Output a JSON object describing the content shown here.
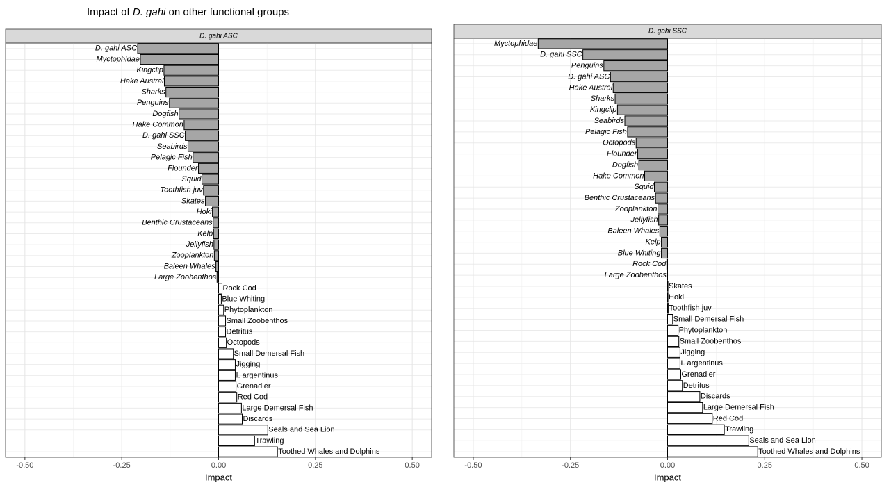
{
  "title": [
    "Impact of ",
    "D. gahi",
    " on other functional groups"
  ],
  "chart_data": [
    {
      "type": "bar",
      "orientation": "horizontal",
      "panel_title": "D. gahi ASC",
      "xlabel": "Impact",
      "categories": [
        "D. gahi ASC",
        "Myctophidae",
        "Kingclip",
        "Hake Austral",
        "Sharks",
        "Penguins",
        "Dogfish",
        "Hake Common",
        "D. gahi SSC",
        "Seabirds",
        "Pelagic Fish",
        "Flounder",
        "Squid",
        "Toothfish juv",
        "Skates",
        "Hoki",
        "Benthic Crustaceans",
        "Kelp",
        "Jellyfish",
        "Zooplankton",
        "Baleen Whales",
        "Large Zoobenthos",
        "Rock Cod",
        "Blue Whiting",
        "Phytoplankton",
        "Small Zoobenthos",
        "Detritus",
        "Octopods",
        "Small Demersal Fish",
        "Jigging",
        "I. argentinus",
        "Grenadier",
        "Red Cod",
        "Large Demersal Fish",
        "Discards",
        "Seals and Sea Lion",
        "Trawling",
        "Toothed Whales and Dolphins"
      ],
      "values": [
        -0.209,
        -0.202,
        -0.141,
        -0.14,
        -0.136,
        -0.127,
        -0.102,
        -0.089,
        -0.086,
        -0.079,
        -0.066,
        -0.052,
        -0.043,
        -0.039,
        -0.034,
        -0.016,
        -0.014,
        -0.013,
        -0.012,
        -0.011,
        -0.007,
        -0.004,
        0.009,
        0.007,
        0.013,
        0.018,
        0.018,
        0.02,
        0.038,
        0.043,
        0.043,
        0.045,
        0.047,
        0.059,
        0.061,
        0.127,
        0.093,
        0.152
      ],
      "negative_color": "#a6a6a6",
      "positive_color": "#ffffff",
      "xlim": [
        -0.55,
        0.55
      ],
      "xticks": [
        {
          "value": -0.5,
          "label": "-0.50"
        },
        {
          "value": -0.25,
          "label": "-0.25"
        },
        {
          "value": 0,
          "label": "0.00"
        },
        {
          "value": 0.25,
          "label": "0.25"
        },
        {
          "value": 0.5,
          "label": "0.50"
        }
      ],
      "grid": true
    },
    {
      "type": "bar",
      "orientation": "horizontal",
      "panel_title": "D. gahi SSC",
      "xlabel": "Impact",
      "categories": [
        "Myctophidae",
        "D. gahi SSC",
        "Penguins",
        "D. gahi ASC",
        "Hake Austral",
        "Sharks",
        "Kingclip",
        "Seabirds",
        "Pelagic Fish",
        "Octopods",
        "Flounder",
        "Dogfish",
        "Hake Common",
        "Squid",
        "Benthic Crustaceans",
        "Zooplankton",
        "Jellyfish",
        "Baleen Whales",
        "Kelp",
        "Blue Whiting",
        "Rock Cod",
        "Large Zoobenthos",
        "Skates",
        "Hoki",
        "Toothfish juv",
        "Small Demersal Fish",
        "Phytoplankton",
        "Small Zoobenthos",
        "Jigging",
        "I. argentinus",
        "Grenadier",
        "Detritus",
        "Discards",
        "Large Demersal Fish",
        "Red Cod",
        "Trawling",
        "Seals and Sea Lion",
        "Toothed Whales and Dolphins"
      ],
      "values": [
        -0.333,
        -0.218,
        -0.164,
        -0.147,
        -0.14,
        -0.135,
        -0.129,
        -0.11,
        -0.103,
        -0.081,
        -0.077,
        -0.074,
        -0.059,
        -0.034,
        -0.031,
        -0.025,
        -0.023,
        -0.02,
        -0.016,
        -0.016,
        -0.002,
        -0.001,
        0.001,
        0.001,
        0.002,
        0.013,
        0.027,
        0.029,
        0.032,
        0.032,
        0.034,
        0.038,
        0.083,
        0.09,
        0.115,
        0.146,
        0.209,
        0.232
      ],
      "negative_color": "#a6a6a6",
      "positive_color": "#ffffff",
      "xlim": [
        -0.55,
        0.55
      ],
      "xticks": [
        {
          "value": -0.5,
          "label": "-0.50"
        },
        {
          "value": -0.25,
          "label": "-0.25"
        },
        {
          "value": 0,
          "label": "0.00"
        },
        {
          "value": 0.25,
          "label": "0.25"
        },
        {
          "value": 0.5,
          "label": "0.50"
        }
      ],
      "grid": true
    }
  ]
}
